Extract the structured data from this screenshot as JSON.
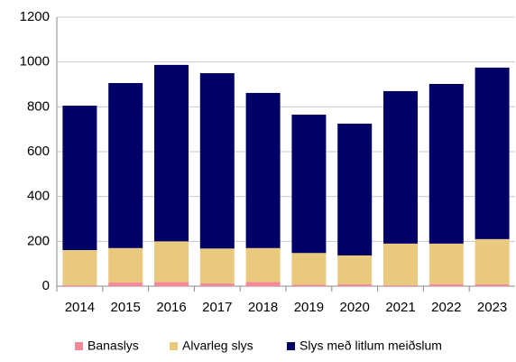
{
  "chart_data": {
    "type": "stacked_bar",
    "categories": [
      "2014",
      "2015",
      "2016",
      "2017",
      "2018",
      "2019",
      "2020",
      "2021",
      "2022",
      "2023"
    ],
    "series": [
      {
        "name": "Banaslys",
        "color": "#f4899b",
        "values": [
          4,
          16,
          18,
          12,
          18,
          6,
          8,
          4,
          9,
          8
        ]
      },
      {
        "name": "Alvarleg slys",
        "color": "#e9c97d",
        "values": [
          157,
          154,
          182,
          156,
          152,
          142,
          129,
          186,
          181,
          202
        ]
      },
      {
        "name": "Slys með litlum meiðslum",
        "color": "#000066",
        "values": [
          644,
          736,
          787,
          782,
          692,
          617,
          588,
          680,
          712,
          765
        ]
      }
    ],
    "ylim": [
      0,
      1200
    ],
    "yticks": [
      0,
      200,
      400,
      600,
      800,
      1000,
      1200
    ],
    "grid": true,
    "legend": "bottom"
  }
}
